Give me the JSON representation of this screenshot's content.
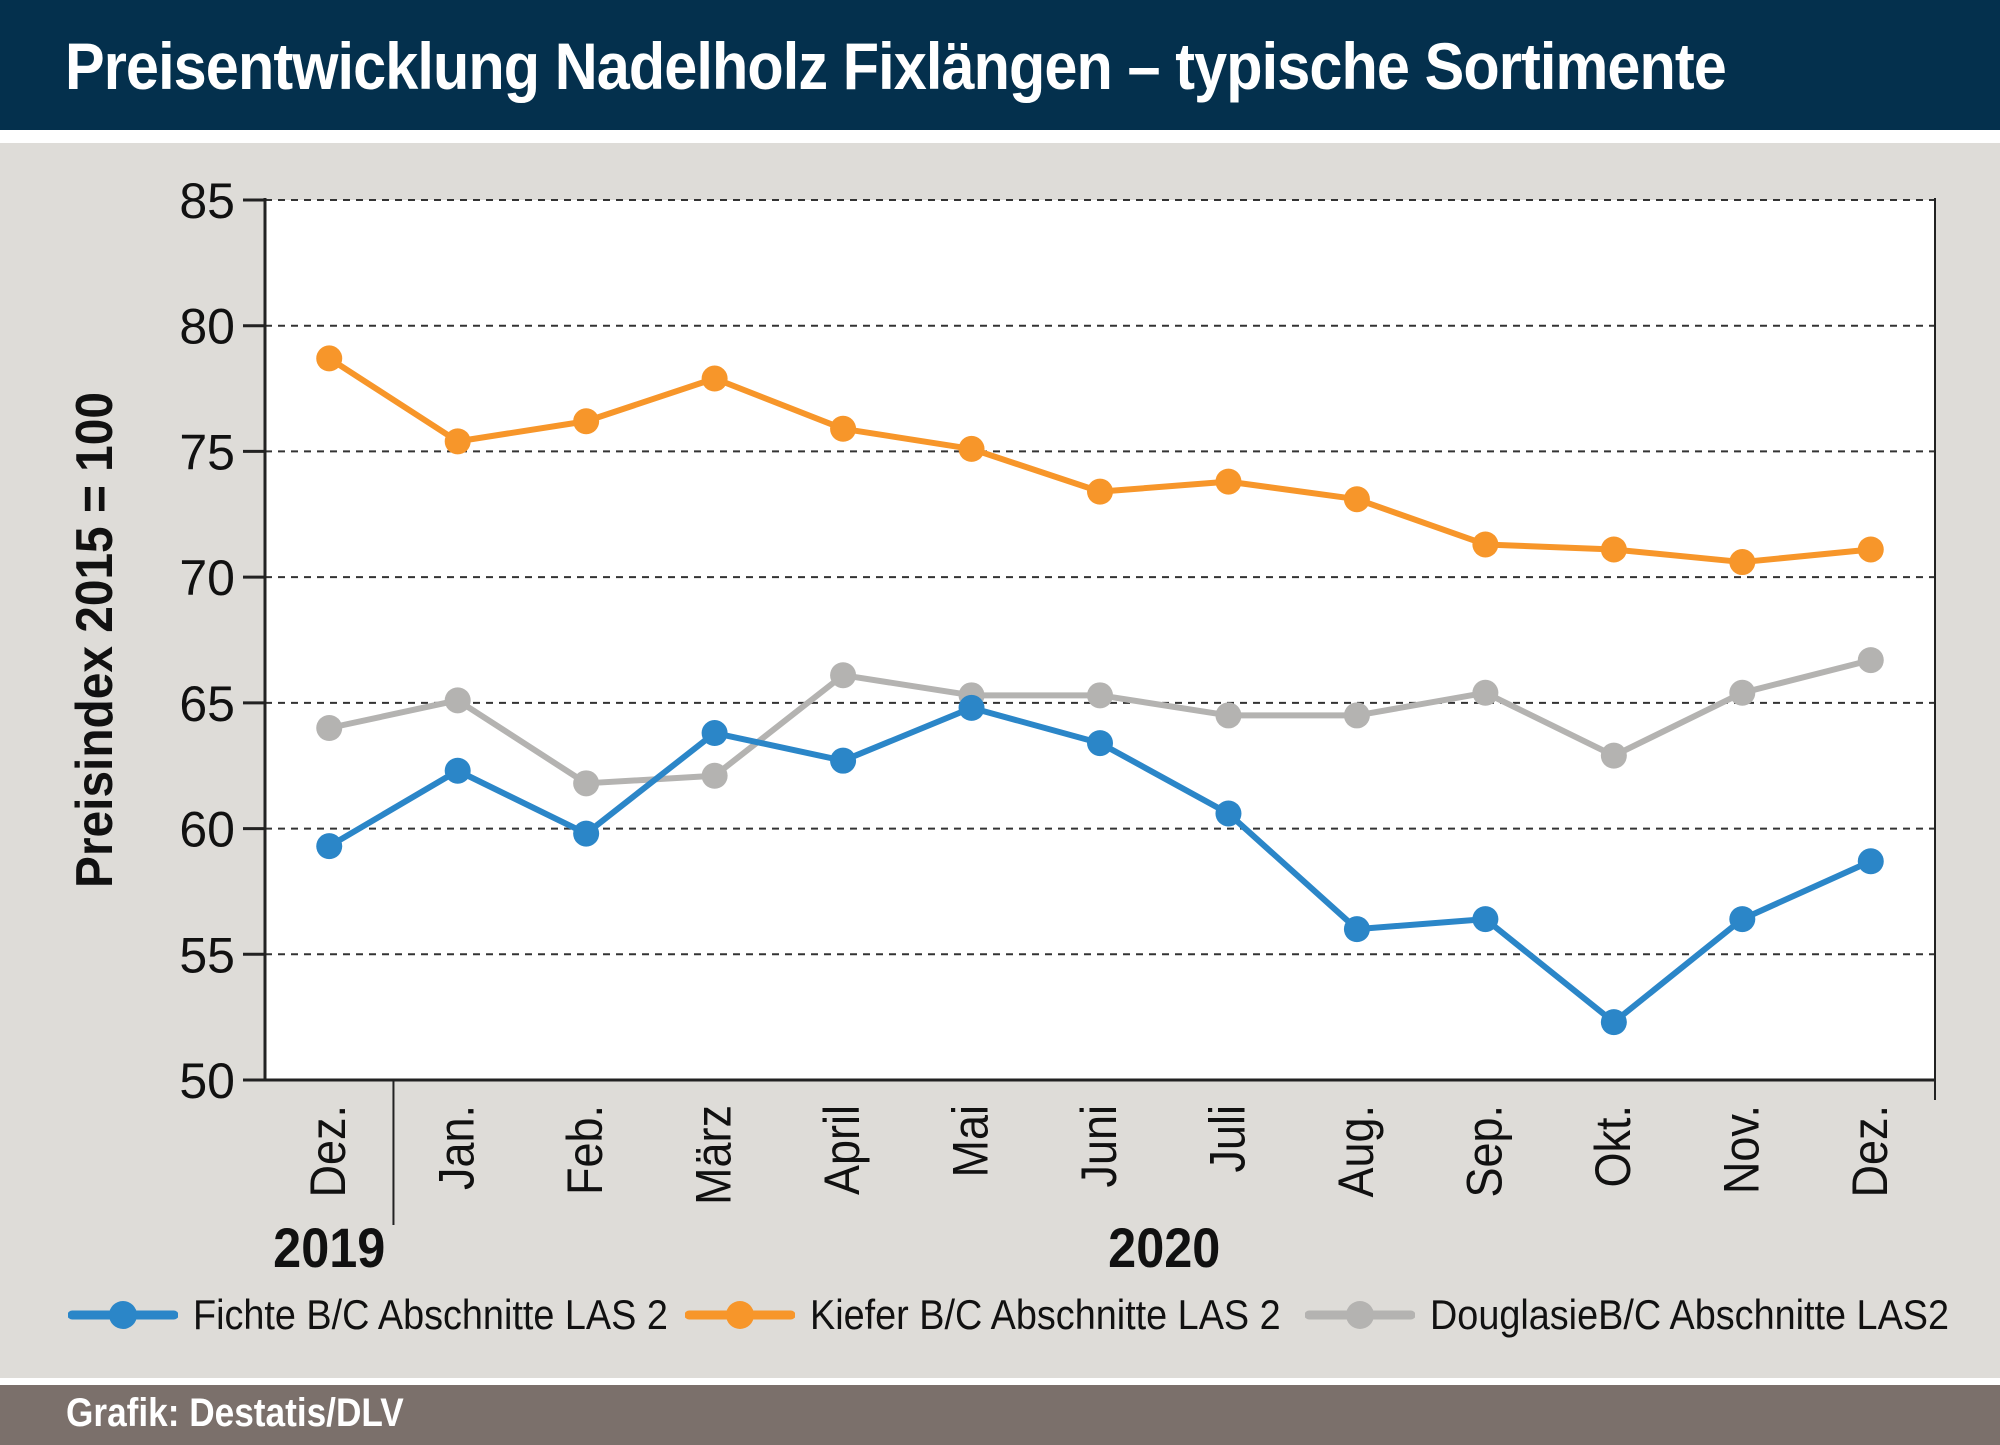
{
  "header": {
    "title": "Preisentwicklung Nadelholz Fixlängen – typische Sortimente"
  },
  "footer": {
    "credit": "Grafik: Destatis/DLV"
  },
  "colors": {
    "title_bg": "#04304d",
    "panel_bg": "#dedcd8",
    "footer_bg": "#7b706b"
  },
  "chart_data": {
    "type": "line",
    "title": "",
    "ylabel": "Preisindex 2015 = 100",
    "xlabel": "",
    "ylim": [
      50,
      85
    ],
    "yticks": [
      50,
      55,
      60,
      65,
      70,
      75,
      80,
      85
    ],
    "grid": "horizontal dashed",
    "legend_position": "bottom",
    "categories": [
      "Dez.",
      "Jan.",
      "Feb.",
      "März",
      "April",
      "Mai",
      "Juni",
      "Juli",
      "Aug.",
      "Sep.",
      "Okt.",
      "Nov.",
      "Dez."
    ],
    "year_labels": [
      {
        "label": "2019",
        "first": 0,
        "last": 0
      },
      {
        "label": "2020",
        "first": 1,
        "last": 12
      }
    ],
    "series": [
      {
        "name": "Fichte B/C Abschnitte LAS 2",
        "color": "#2b86c8",
        "values": [
          59.3,
          62.3,
          59.8,
          63.8,
          62.7,
          64.8,
          63.4,
          60.6,
          56.0,
          56.4,
          52.3,
          56.4,
          58.7
        ]
      },
      {
        "name": "Kiefer B/C Abschnitte LAS 2",
        "color": "#f7962a",
        "values": [
          78.7,
          75.4,
          76.2,
          77.9,
          75.9,
          75.1,
          73.4,
          73.8,
          73.1,
          71.3,
          71.1,
          70.6,
          71.1
        ]
      },
      {
        "name": "DouglasieB/C Abschnitte LAS2",
        "color": "#b4b3b1",
        "values": [
          64.0,
          65.1,
          61.8,
          62.1,
          66.1,
          65.3,
          65.3,
          64.5,
          64.5,
          65.4,
          62.9,
          65.4,
          66.7
        ]
      }
    ]
  }
}
